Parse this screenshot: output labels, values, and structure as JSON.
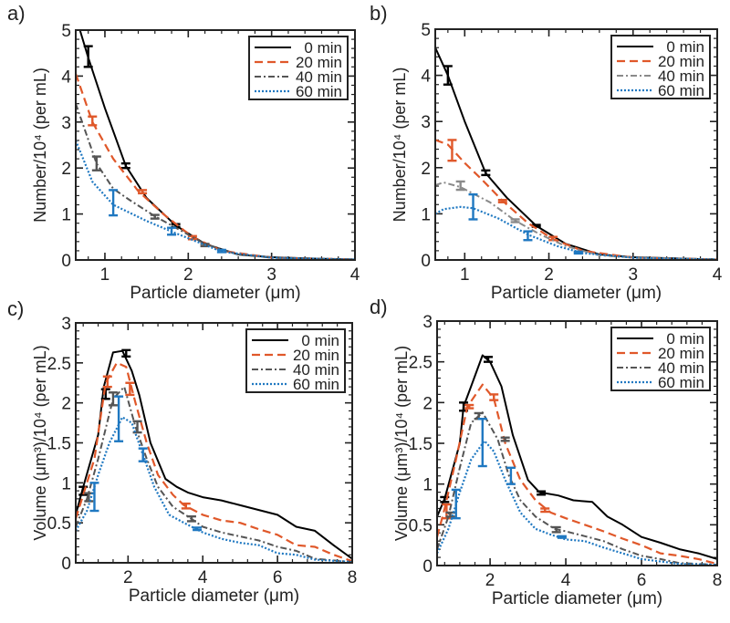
{
  "legend_labels": [
    "0 min",
    "20 min",
    "40 min",
    "60 min"
  ],
  "series_colors": [
    "#000000",
    "#e0582a",
    "#555555",
    "#1f78c1"
  ],
  "chart_data": [
    {
      "panel": "a)",
      "type": "line",
      "xlabel": "Particle diameter (μm)",
      "ylabel": "Number/10⁴ (per mL)",
      "xlim": [
        0.65,
        4
      ],
      "ylim": [
        0,
        5
      ],
      "xticks": [
        1,
        2,
        3,
        4
      ],
      "yticks": [
        0,
        1,
        2,
        3,
        4,
        5
      ],
      "legend": "top-right",
      "series": [
        {
          "name": "0 min",
          "x": [
            0.7,
            0.8,
            1,
            1.25,
            1.5,
            1.85,
            2.2,
            2.6,
            3,
            3.5,
            4
          ],
          "y": [
            5,
            4.4,
            3.3,
            2.05,
            1.35,
            0.75,
            0.35,
            0.12,
            0.06,
            0.03,
            0.01
          ],
          "errorbars": [
            [
              0.8,
              4.2,
              4.65
            ],
            [
              1.25,
              2.0,
              2.1
            ],
            [
              1.85,
              0.72,
              0.78
            ]
          ]
        },
        {
          "name": "20 min",
          "x": [
            0.65,
            0.85,
            1.1,
            1.4,
            1.7,
            2.05,
            2.4,
            3,
            4
          ],
          "y": [
            4.05,
            3.0,
            2.2,
            1.5,
            1.0,
            0.5,
            0.2,
            0.05,
            0.01
          ],
          "errorbars": [
            [
              0.85,
              2.93,
              3.12
            ],
            [
              1.45,
              1.45,
              1.52
            ],
            [
              2.05,
              0.45,
              0.52
            ]
          ]
        },
        {
          "name": "40 min",
          "x": [
            0.65,
            0.9,
            1.1,
            1.3,
            1.6,
            1.9,
            2.2,
            2.6,
            3,
            4
          ],
          "y": [
            3.4,
            2.1,
            1.55,
            1.3,
            0.95,
            0.65,
            0.35,
            0.12,
            0.05,
            0.01
          ],
          "errorbars": [
            [
              0.9,
              1.95,
              2.25
            ],
            [
              1.6,
              0.9,
              0.98
            ],
            [
              2.2,
              0.3,
              0.35
            ]
          ]
        },
        {
          "name": "60 min",
          "x": [
            0.65,
            0.85,
            1.1,
            1.5,
            1.8,
            2.1,
            2.4,
            3,
            4
          ],
          "y": [
            2.6,
            1.7,
            1.2,
            0.85,
            0.62,
            0.4,
            0.18,
            0.05,
            0.01
          ],
          "errorbars": [
            [
              1.1,
              0.97,
              1.52
            ],
            [
              1.8,
              0.55,
              0.7
            ],
            [
              2.4,
              0.17,
              0.22
            ]
          ]
        }
      ]
    },
    {
      "panel": "b)",
      "type": "line",
      "xlabel": "Particle diameter (μm)",
      "ylabel": "Number/10⁴ (per mL)",
      "xlim": [
        0.65,
        4
      ],
      "ylim": [
        0,
        5
      ],
      "xticks": [
        1,
        2,
        3,
        4
      ],
      "yticks": [
        0,
        1,
        2,
        3,
        4,
        5
      ],
      "legend": "top-right",
      "series": [
        {
          "name": "0 min",
          "x": [
            0.65,
            0.8,
            1,
            1.25,
            1.5,
            1.85,
            2.2,
            2.6,
            3,
            4
          ],
          "y": [
            4.6,
            4.0,
            3.0,
            1.88,
            1.35,
            0.74,
            0.35,
            0.12,
            0.06,
            0.01
          ],
          "errorbars": [
            [
              0.8,
              3.8,
              4.2
            ],
            [
              1.25,
              1.84,
              1.94
            ],
            [
              1.85,
              0.72,
              0.76
            ]
          ]
        },
        {
          "name": "20 min",
          "x": [
            0.65,
            0.8,
            1,
            1.2,
            1.45,
            1.75,
            2.05,
            2.4,
            3,
            4
          ],
          "y": [
            2.6,
            2.5,
            2.1,
            1.75,
            1.28,
            0.8,
            0.45,
            0.2,
            0.05,
            0.01
          ],
          "errorbars": [
            [
              0.85,
              2.15,
              2.6
            ],
            [
              1.45,
              1.25,
              1.3
            ],
            [
              2.05,
              0.43,
              0.5
            ]
          ]
        },
        {
          "name": "40 min",
          "x": [
            0.65,
            0.75,
            0.95,
            1.3,
            1.6,
            1.9,
            2.2,
            2.6,
            3,
            4
          ],
          "y": [
            1.62,
            1.68,
            1.58,
            1.25,
            0.85,
            0.55,
            0.3,
            0.1,
            0.05,
            0.01
          ],
          "errorbars": [
            [
              0.95,
              1.52,
              1.7
            ],
            [
              1.6,
              0.82,
              0.88
            ],
            [
              2.35,
              0.15,
              0.18
            ]
          ]
        },
        {
          "name": "60 min",
          "x": [
            0.65,
            0.75,
            0.95,
            1.1,
            1.4,
            1.75,
            2.1,
            2.4,
            3,
            4
          ],
          "y": [
            1.0,
            1.1,
            1.15,
            1.12,
            0.9,
            0.55,
            0.3,
            0.15,
            0.05,
            0.01
          ],
          "errorbars": [
            [
              1.1,
              0.88,
              1.42
            ],
            [
              1.75,
              0.43,
              0.62
            ],
            [
              2.35,
              0.14,
              0.18
            ]
          ]
        }
      ]
    },
    {
      "panel": "c)",
      "type": "line",
      "xlabel": "Particle diameter (μm)",
      "ylabel": "Volume (μm³)/10⁴ (per mL)",
      "xlim": [
        0.6,
        8
      ],
      "ylim": [
        0,
        3
      ],
      "xticks": [
        2,
        4,
        6,
        8
      ],
      "yticks": [
        0,
        0.5,
        1,
        1.5,
        2,
        2.5,
        3
      ],
      "legend": "top-right",
      "series": [
        {
          "name": "0 min",
          "x": [
            0.6,
            0.8,
            1.2,
            1.35,
            1.6,
            1.85,
            2.1,
            2.3,
            2.6,
            3,
            3.3,
            3.6,
            4,
            4.5,
            5,
            5.5,
            6,
            6.5,
            7,
            7.5,
            8
          ],
          "y": [
            0.6,
            0.95,
            1.6,
            2.2,
            2.63,
            2.65,
            2.4,
            2.1,
            1.5,
            1.05,
            0.95,
            0.88,
            0.82,
            0.78,
            0.72,
            0.66,
            0.6,
            0.45,
            0.4,
            0.22,
            0.05
          ],
          "errorbars": [
            [
              0.8,
              0.85,
              0.95
            ],
            [
              1.4,
              2.05,
              2.17
            ],
            [
              1.95,
              2.58,
              2.66
            ]
          ]
        },
        {
          "name": "20 min",
          "x": [
            0.6,
            0.8,
            1.1,
            1.4,
            1.7,
            1.95,
            2.2,
            2.5,
            2.8,
            3.2,
            3.5,
            4,
            4.5,
            5,
            5.5,
            6,
            6.5,
            7,
            7.5,
            8
          ],
          "y": [
            0.55,
            0.85,
            1.3,
            2.25,
            2.5,
            2.45,
            2.0,
            1.5,
            1.1,
            0.85,
            0.72,
            0.6,
            0.53,
            0.5,
            0.42,
            0.35,
            0.22,
            0.2,
            0.1,
            0.02
          ],
          "errorbars": [
            [
              1.45,
              2.2,
              2.33
            ],
            [
              2.05,
              2.1,
              2.25
            ],
            [
              3.55,
              0.68,
              0.74
            ]
          ]
        },
        {
          "name": "40 min",
          "x": [
            0.6,
            0.9,
            1.2,
            1.6,
            1.9,
            2.2,
            2.5,
            2.8,
            3.2,
            3.7,
            4,
            4.5,
            5,
            5.5,
            6,
            6.5,
            7,
            8
          ],
          "y": [
            0.45,
            0.8,
            1.3,
            2.05,
            2.2,
            1.7,
            1.3,
            0.95,
            0.7,
            0.55,
            0.45,
            0.38,
            0.33,
            0.28,
            0.2,
            0.15,
            0.05,
            0.01
          ],
          "errorbars": [
            [
              0.95,
              0.77,
              0.87
            ],
            [
              1.6,
              1.97,
              2.13
            ],
            [
              2.25,
              1.63,
              1.77
            ],
            [
              3.7,
              0.52,
              0.58
            ]
          ]
        },
        {
          "name": "60 min",
          "x": [
            0.6,
            0.9,
            1.2,
            1.5,
            1.85,
            2.1,
            2.4,
            2.7,
            3.1,
            3.5,
            4,
            4.5,
            5,
            5.5,
            6,
            6.5,
            7,
            8
          ],
          "y": [
            0.4,
            0.65,
            1.1,
            1.5,
            1.82,
            1.75,
            1.35,
            0.95,
            0.6,
            0.5,
            0.38,
            0.3,
            0.25,
            0.22,
            0.12,
            0.1,
            0.04,
            0.01
          ],
          "errorbars": [
            [
              1.1,
              0.65,
              1.0
            ],
            [
              1.75,
              1.52,
              2.08
            ],
            [
              2.4,
              1.27,
              1.43
            ],
            [
              3.85,
              0.41,
              0.44
            ]
          ]
        }
      ]
    },
    {
      "panel": "d)",
      "type": "line",
      "xlabel": "Particle diameter (μm)",
      "ylabel": "Volume (μm³)/10⁴ (per mL)",
      "xlim": [
        0.6,
        8
      ],
      "ylim": [
        0,
        3
      ],
      "xticks": [
        2,
        4,
        6,
        8
      ],
      "yticks": [
        0,
        0.5,
        1,
        1.5,
        2,
        2.5,
        3
      ],
      "legend": "top-right",
      "series": [
        {
          "name": "0 min",
          "x": [
            0.6,
            0.8,
            1.2,
            1.3,
            1.5,
            1.8,
            2.0,
            2.3,
            2.6,
            3,
            3.3,
            3.8,
            4.2,
            4.7,
            5.1,
            5.5,
            6,
            6.5,
            7,
            7.5,
            8
          ],
          "y": [
            0.6,
            0.82,
            1.5,
            1.95,
            2.2,
            2.58,
            2.5,
            2.2,
            1.6,
            1.05,
            0.9,
            0.86,
            0.8,
            0.78,
            0.6,
            0.5,
            0.35,
            0.28,
            0.2,
            0.15,
            0.08
          ],
          "errorbars": [
            [
              0.8,
              0.78,
              0.84
            ],
            [
              1.3,
              1.9,
              2.0
            ],
            [
              1.95,
              2.5,
              2.56
            ],
            [
              3.35,
              0.87,
              0.91
            ]
          ]
        },
        {
          "name": "20 min",
          "x": [
            0.6,
            0.8,
            1.1,
            1.4,
            1.8,
            2.1,
            2.4,
            2.8,
            3.2,
            3.6,
            4,
            4.5,
            5,
            5.5,
            6,
            6.5,
            7,
            7.5,
            8
          ],
          "y": [
            0.35,
            0.7,
            1.3,
            1.95,
            2.22,
            2.05,
            1.5,
            1.05,
            0.8,
            0.65,
            0.58,
            0.5,
            0.42,
            0.33,
            0.25,
            0.15,
            0.12,
            0.08,
            0.02
          ],
          "errorbars": [
            [
              0.85,
              0.58,
              0.75
            ],
            [
              1.45,
              1.93,
              1.97
            ],
            [
              2.1,
              2.03,
              2.1
            ],
            [
              3.45,
              0.66,
              0.7
            ]
          ]
        },
        {
          "name": "40 min",
          "x": [
            0.6,
            0.9,
            1.2,
            1.5,
            1.8,
            2.2,
            2.5,
            2.8,
            3.2,
            3.7,
            4,
            4.5,
            5,
            5.5,
            6,
            6.5,
            7,
            8
          ],
          "y": [
            0.2,
            0.6,
            1.2,
            1.75,
            1.88,
            1.55,
            1.1,
            0.8,
            0.6,
            0.45,
            0.42,
            0.36,
            0.3,
            0.2,
            0.12,
            0.08,
            0.03,
            0.01
          ],
          "errorbars": [
            [
              0.95,
              0.6,
              0.65
            ],
            [
              1.7,
              1.8,
              1.87
            ],
            [
              2.4,
              1.53,
              1.57
            ],
            [
              3.75,
              0.41,
              0.47
            ]
          ]
        },
        {
          "name": "60 min",
          "x": [
            0.6,
            0.9,
            1.2,
            1.5,
            1.85,
            2.1,
            2.4,
            2.8,
            3.2,
            3.6,
            4,
            4.5,
            5,
            5.5,
            6,
            7,
            8
          ],
          "y": [
            0.15,
            0.45,
            0.9,
            1.3,
            1.53,
            1.4,
            1.05,
            0.65,
            0.45,
            0.38,
            0.32,
            0.3,
            0.22,
            0.15,
            0.08,
            0.02,
            0.01
          ],
          "errorbars": [
            [
              1.1,
              0.58,
              0.93
            ],
            [
              1.8,
              1.22,
              1.8
            ],
            [
              2.55,
              1.0,
              1.2
            ],
            [
              3.9,
              0.34,
              0.36
            ]
          ]
        }
      ]
    }
  ]
}
